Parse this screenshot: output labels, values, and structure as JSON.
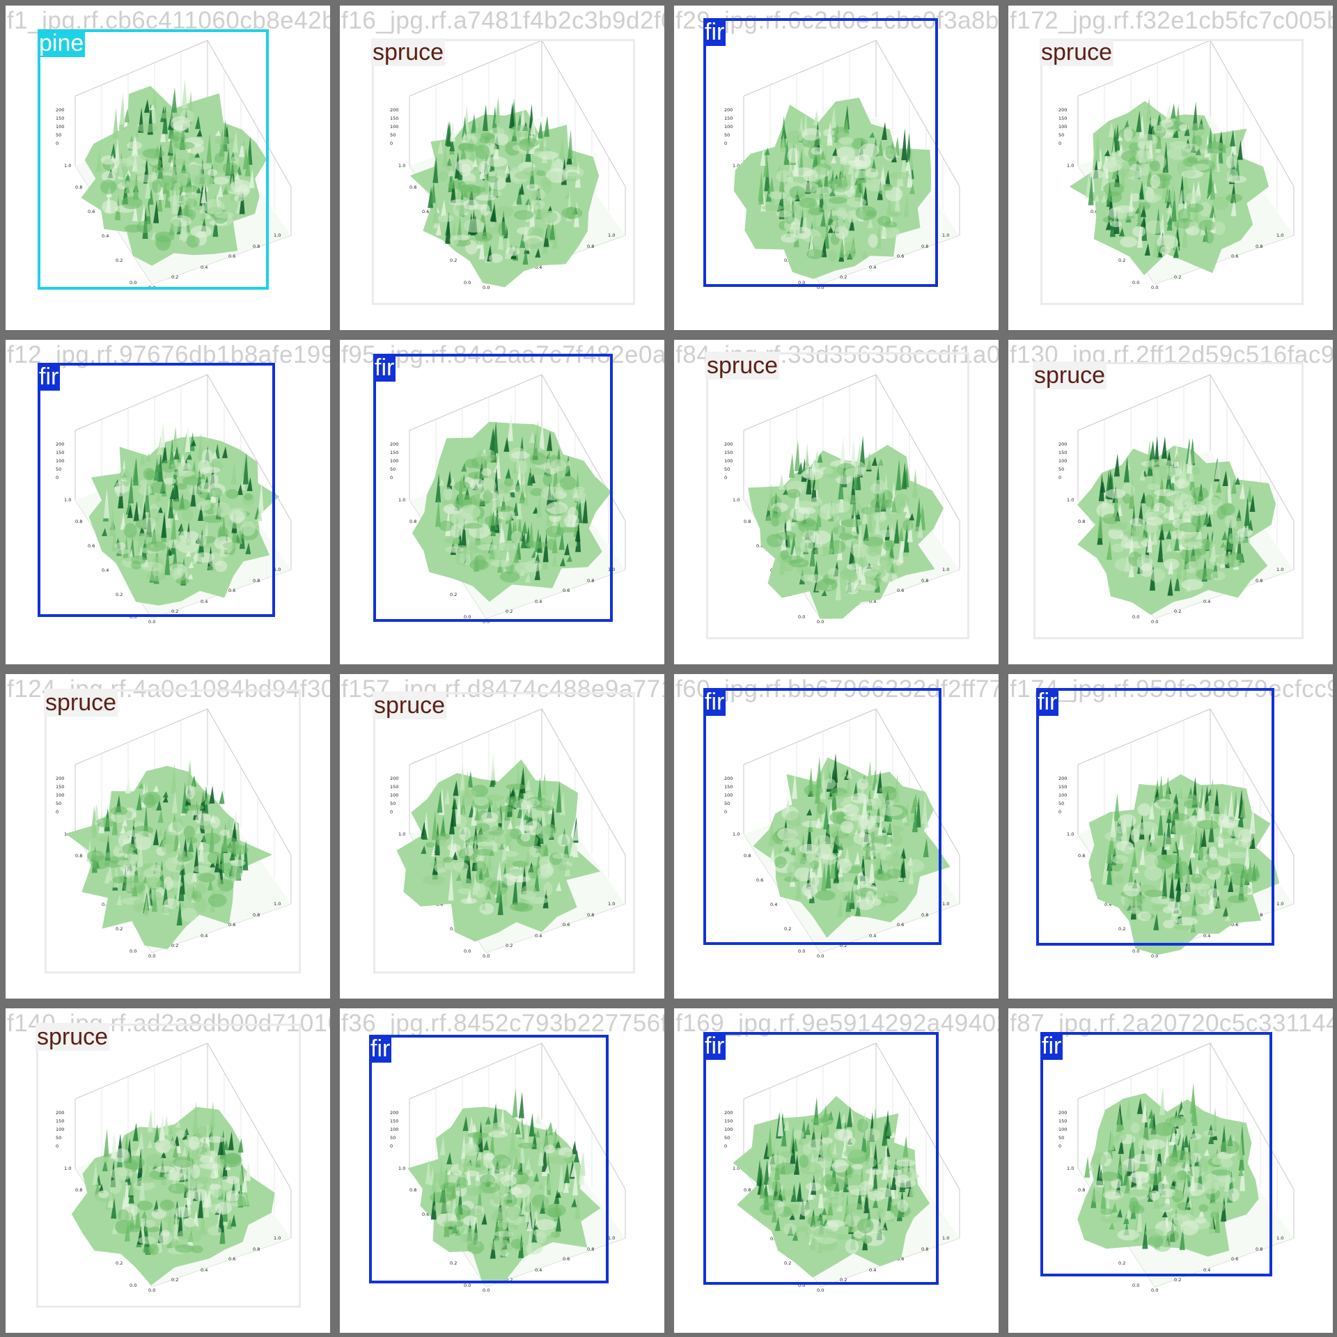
{
  "colors": {
    "pine": {
      "border": "#1ed1e6",
      "bg": "#1ed1e6",
      "text": "#ffffff"
    },
    "fir": {
      "border": "#1032d8",
      "bg": "#1032d8",
      "text": "#ffffff"
    },
    "spruce": {
      "border": "#ebebeb",
      "bg": "#f2f2f2",
      "text": "#5c1f15"
    }
  },
  "tiles": [
    {
      "filename": "f1_jpg.rf.cb6c411060cb8e42b0638e10a83747",
      "label": "pine"
    },
    {
      "filename": "f16_jpg.rf.a7481f4b2c3b9d2f0e3b1c07ad",
      "label": "spruce"
    },
    {
      "filename": "f29_jpg.rf.6c2d0e1cbc0f3a8b281762a4",
      "label": "fir"
    },
    {
      "filename": "f172_jpg.rf.f32e1cb5fc7c005b",
      "label": "spruce"
    },
    {
      "filename": "f12_jpg.rf.97676db1b8afe1996",
      "label": "fir"
    },
    {
      "filename": "f95_jpg.rf.84c2aa7c7f482e0a4a84",
      "label": "fir"
    },
    {
      "filename": "f84_jpg.rf.33d356358ccdf1a0e1c",
      "label": "spruce"
    },
    {
      "filename": "f130_jpg.rf.2ff12d59c516fac9faf6",
      "label": "spruce"
    },
    {
      "filename": "f124_jpg.rf.4a0e1084bd94f306fd56",
      "label": "spruce"
    },
    {
      "filename": "f157_jpg.rf.d8474c488e9a771d855",
      "label": "spruce"
    },
    {
      "filename": "f60_jpg.rf.bb67966232df2ff778b76",
      "label": "fir"
    },
    {
      "filename": "f174_jpg.rf.959fe38879ecfcc9f9ae",
      "label": "fir"
    },
    {
      "filename": "f140_jpg.rf.ad2a8db00d71010be",
      "label": "spruce"
    },
    {
      "filename": "f36_jpg.rf.8452c793b227756fb",
      "label": "fir"
    },
    {
      "filename": "f169_jpg.rf.9e5914292a49402a7",
      "label": "fir"
    },
    {
      "filename": "f87_jpg.rf.2a20720c5c3311440",
      "label": "fir"
    }
  ]
}
